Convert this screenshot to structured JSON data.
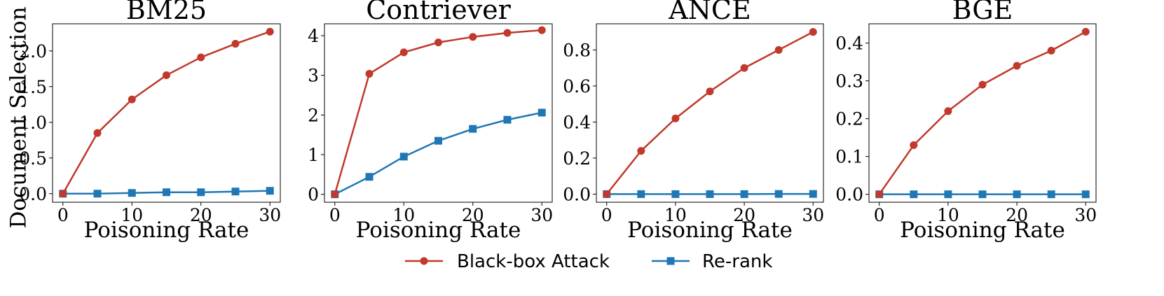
{
  "colors": {
    "attack": "#c0392b",
    "rerank": "#1f77b4"
  },
  "legend": {
    "attack_label": "Black-box Attack",
    "rerank_label": "Re-rank"
  },
  "chart_data": [
    {
      "type": "line",
      "title": "BM25",
      "xlabel": "Poisoning Rate",
      "ylabel": "Document Selection",
      "x": [
        0,
        5,
        10,
        15,
        20,
        25,
        30
      ],
      "xticks": [
        "0",
        "10",
        "20",
        "30"
      ],
      "yticks": [
        "0.0",
        "0.5",
        "1.0",
        "1.5",
        "2.0"
      ],
      "ylim": [
        -0.12,
        2.38
      ],
      "series": [
        {
          "name": "Black-box Attack",
          "marker": "circle",
          "values": [
            0.0,
            0.85,
            1.32,
            1.66,
            1.91,
            2.1,
            2.27
          ]
        },
        {
          "name": "Re-rank",
          "marker": "square",
          "values": [
            0.0,
            0.0,
            0.01,
            0.02,
            0.02,
            0.03,
            0.04
          ]
        }
      ]
    },
    {
      "type": "line",
      "title": "Contriever",
      "xlabel": "Poisoning Rate",
      "ylabel": "",
      "x": [
        0,
        5,
        10,
        15,
        20,
        25,
        30
      ],
      "xticks": [
        "0",
        "10",
        "20",
        "30"
      ],
      "yticks": [
        "0",
        "1",
        "2",
        "3",
        "4"
      ],
      "ylim": [
        -0.2,
        4.3
      ],
      "series": [
        {
          "name": "Black-box Attack",
          "marker": "circle",
          "values": [
            0.0,
            3.04,
            3.58,
            3.83,
            3.97,
            4.07,
            4.14
          ]
        },
        {
          "name": "Re-rank",
          "marker": "square",
          "values": [
            0.0,
            0.44,
            0.95,
            1.35,
            1.65,
            1.88,
            2.06
          ]
        }
      ]
    },
    {
      "type": "line",
      "title": "ANCE",
      "xlabel": "Poisoning Rate",
      "ylabel": "",
      "x": [
        0,
        5,
        10,
        15,
        20,
        25,
        30
      ],
      "xticks": [
        "0",
        "10",
        "20",
        "30"
      ],
      "yticks": [
        "0.0",
        "0.2",
        "0.4",
        "0.6",
        "0.8"
      ],
      "ylim": [
        -0.045,
        0.945
      ],
      "series": [
        {
          "name": "Black-box Attack",
          "marker": "circle",
          "values": [
            0.0,
            0.24,
            0.42,
            0.57,
            0.7,
            0.8,
            0.9
          ]
        },
        {
          "name": "Re-rank",
          "marker": "square",
          "values": [
            0.0,
            0.0,
            0.0,
            0.0,
            0.0,
            0.001,
            0.001
          ]
        }
      ]
    },
    {
      "type": "line",
      "title": "BGE",
      "xlabel": "Poisoning Rate",
      "ylabel": "",
      "x": [
        0,
        5,
        10,
        15,
        20,
        25,
        30
      ],
      "xticks": [
        "0",
        "10",
        "20",
        "30"
      ],
      "yticks": [
        "0.0",
        "0.1",
        "0.2",
        "0.3",
        "0.4"
      ],
      "ylim": [
        -0.021,
        0.451
      ],
      "series": [
        {
          "name": "Black-box Attack",
          "marker": "circle",
          "values": [
            0.0,
            0.13,
            0.22,
            0.29,
            0.34,
            0.38,
            0.43
          ]
        },
        {
          "name": "Re-rank",
          "marker": "square",
          "values": [
            0.0,
            0.0,
            0.0,
            0.0,
            0.0,
            0.0,
            0.0
          ]
        }
      ]
    }
  ]
}
